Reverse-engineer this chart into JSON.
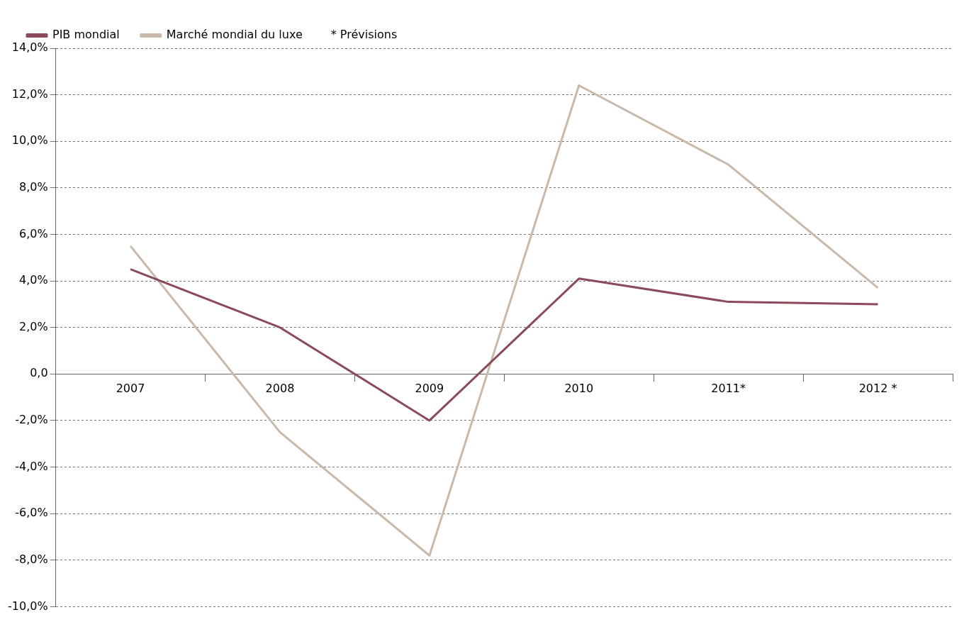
{
  "chart_data": {
    "type": "line",
    "categories": [
      "2007",
      "2008",
      "2009",
      "2010",
      "2011*",
      "2012 *"
    ],
    "series": [
      {
        "name": "PIB mondial",
        "color": "#8b4a5a",
        "values": [
          4.5,
          2.0,
          -2.0,
          4.1,
          3.1,
          3.0
        ]
      },
      {
        "name": "Marché mondial du luxe",
        "color": "#c9b9aa",
        "values": [
          5.5,
          -2.5,
          -7.8,
          12.4,
          9.0,
          3.7
        ]
      }
    ],
    "ylim": [
      -10,
      14
    ],
    "yticks": [
      {
        "value": -10,
        "label": "-10,0%"
      },
      {
        "value": -8,
        "label": "-8,0%"
      },
      {
        "value": -6,
        "label": "-6,0%"
      },
      {
        "value": -4,
        "label": "-4,0%"
      },
      {
        "value": -2,
        "label": "-2,0%"
      },
      {
        "value": 0,
        "label": "0,0"
      },
      {
        "value": 2,
        "label": "2,0%"
      },
      {
        "value": 4,
        "label": "4,0%"
      },
      {
        "value": 6,
        "label": "6,0%"
      },
      {
        "value": 8,
        "label": "8,0%"
      },
      {
        "value": 10,
        "label": "10,0%"
      },
      {
        "value": 12,
        "label": "12,0%"
      },
      {
        "value": 14,
        "label": "14,0%"
      }
    ],
    "grid": "y",
    "legend": "top left",
    "marker": "none",
    "line_style": "solid",
    "annotations": [
      "* Prévisions"
    ]
  }
}
